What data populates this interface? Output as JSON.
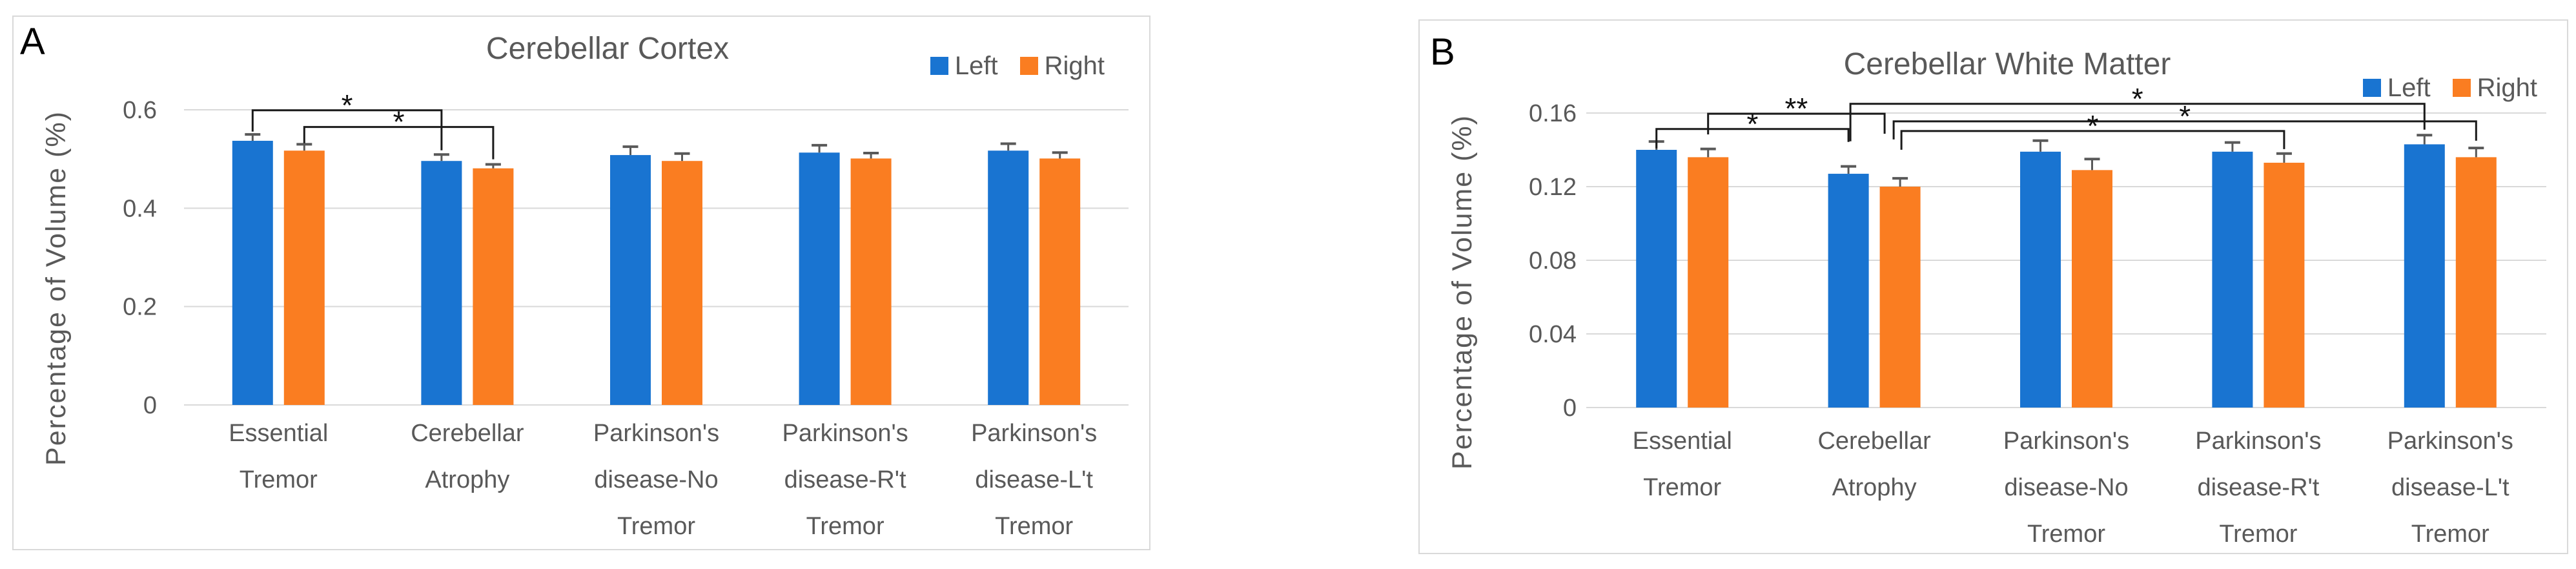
{
  "figure": {
    "background": "#ffffff",
    "border_color": "#D9D9D9",
    "gridline_color": "#D9D9D9",
    "text_color": "#595959",
    "error_bar_color": "#595959",
    "bracket_color": "#1a1a1a"
  },
  "chart_data": [
    {
      "type": "bar",
      "panel_label": "A",
      "title": "Cerebellar Cortex",
      "xlabel": "",
      "ylabel": "Percentage of Volume (%)",
      "ylim": [
        0,
        0.6
      ],
      "grid": true,
      "legend_position": "top-right",
      "ytick_values": [
        0.6,
        0.4,
        0.2,
        0
      ],
      "ytick_labels": [
        "0.6",
        "0.4",
        "0.2",
        "0"
      ],
      "categories": [
        [
          "Essential",
          "Tremor"
        ],
        [
          "Cerebellar",
          "Atrophy"
        ],
        [
          "Parkinson's",
          "disease-No",
          "Tremor"
        ],
        [
          "Parkinson's",
          "disease-R't",
          "Tremor"
        ],
        [
          "Parkinson's",
          "disease-L't",
          "Tremor"
        ]
      ],
      "series": [
        {
          "name": "Left",
          "color": "#1974D1",
          "values": [
            0.537,
            0.496,
            0.508,
            0.513,
            0.517
          ],
          "errors": [
            0.013,
            0.013,
            0.017,
            0.015,
            0.014
          ]
        },
        {
          "name": "Right",
          "color": "#FA7D21",
          "values": [
            0.517,
            0.481,
            0.496,
            0.501,
            0.501
          ],
          "errors": [
            0.013,
            0.008,
            0.015,
            0.011,
            0.012
          ]
        }
      ],
      "significance_brackets": [
        {
          "label": "*",
          "x1": {
            "group": 0,
            "series": 0,
            "dx": 0
          },
          "x2": {
            "group": 1,
            "series": 0,
            "dx": 0
          },
          "y": 0.599,
          "drop1": 33,
          "drop2": 62
        },
        {
          "label": "*",
          "x1": {
            "group": 0,
            "series": 1,
            "dx": 0
          },
          "x2": {
            "group": 1,
            "series": 1,
            "dx": 0
          },
          "y": 0.565,
          "drop1": 25,
          "drop2": 50
        }
      ]
    },
    {
      "type": "bar",
      "panel_label": "B",
      "title": "Cerebellar White Matter",
      "xlabel": "",
      "ylabel": "Percentage of Volume (%)",
      "ylim": [
        0,
        0.16
      ],
      "grid": true,
      "legend_position": "top-right",
      "ytick_values": [
        0.16,
        0.12,
        0.08,
        0.04,
        0
      ],
      "ytick_labels": [
        "0.16",
        "0.12",
        "0.08",
        "0.04",
        "0"
      ],
      "categories": [
        [
          "Essential",
          "Tremor"
        ],
        [
          "Cerebellar",
          "Atrophy"
        ],
        [
          "Parkinson's",
          "disease-No",
          "Tremor"
        ],
        [
          "Parkinson's",
          "disease-R't",
          "Tremor"
        ],
        [
          "Parkinson's",
          "disease-L't",
          "Tremor"
        ]
      ],
      "series": [
        {
          "name": "Left",
          "color": "#1974D1",
          "values": [
            0.14,
            0.127,
            0.139,
            0.139,
            0.143
          ],
          "errors": [
            0.0045,
            0.004,
            0.006,
            0.005,
            0.005
          ]
        },
        {
          "name": "Right",
          "color": "#FA7D21",
          "values": [
            0.136,
            0.12,
            0.129,
            0.133,
            0.136
          ],
          "errors": [
            0.0045,
            0.0045,
            0.006,
            0.005,
            0.005
          ]
        }
      ],
      "significance_brackets": [
        {
          "label": "*",
          "x1": {
            "group": 0,
            "series": 0,
            "dx": 0
          },
          "x2": {
            "group": 1,
            "series": 0,
            "dx": 0
          },
          "y": 0.1513,
          "drop1": 30,
          "drop2": 20
        },
        {
          "label": "**",
          "x1": {
            "group": 0,
            "series": 1,
            "dx": 0
          },
          "x2": {
            "group": 1,
            "series": 0,
            "dx": 56
          },
          "y": 0.1596,
          "drop1": 32,
          "drop2": 31
        },
        {
          "label": "*",
          "x1": {
            "group": 1,
            "series": 0,
            "dx": 3
          },
          "x2": {
            "group": 4,
            "series": 0,
            "dx": 0
          },
          "y": 0.165,
          "drop1": 58,
          "drop2": 40
        },
        {
          "label": "*",
          "x1": {
            "group": 1,
            "series": 1,
            "dx": -10
          },
          "x2": {
            "group": 4,
            "series": 1,
            "dx": 0
          },
          "y": 0.1555,
          "drop1": 28,
          "drop2": 30
        },
        {
          "label": "*",
          "x1": {
            "group": 1,
            "series": 1,
            "dx": 2
          },
          "x2": {
            "group": 3,
            "series": 1,
            "dx": 0
          },
          "y": 0.1502,
          "drop1": 29,
          "drop2": 28
        }
      ]
    }
  ]
}
